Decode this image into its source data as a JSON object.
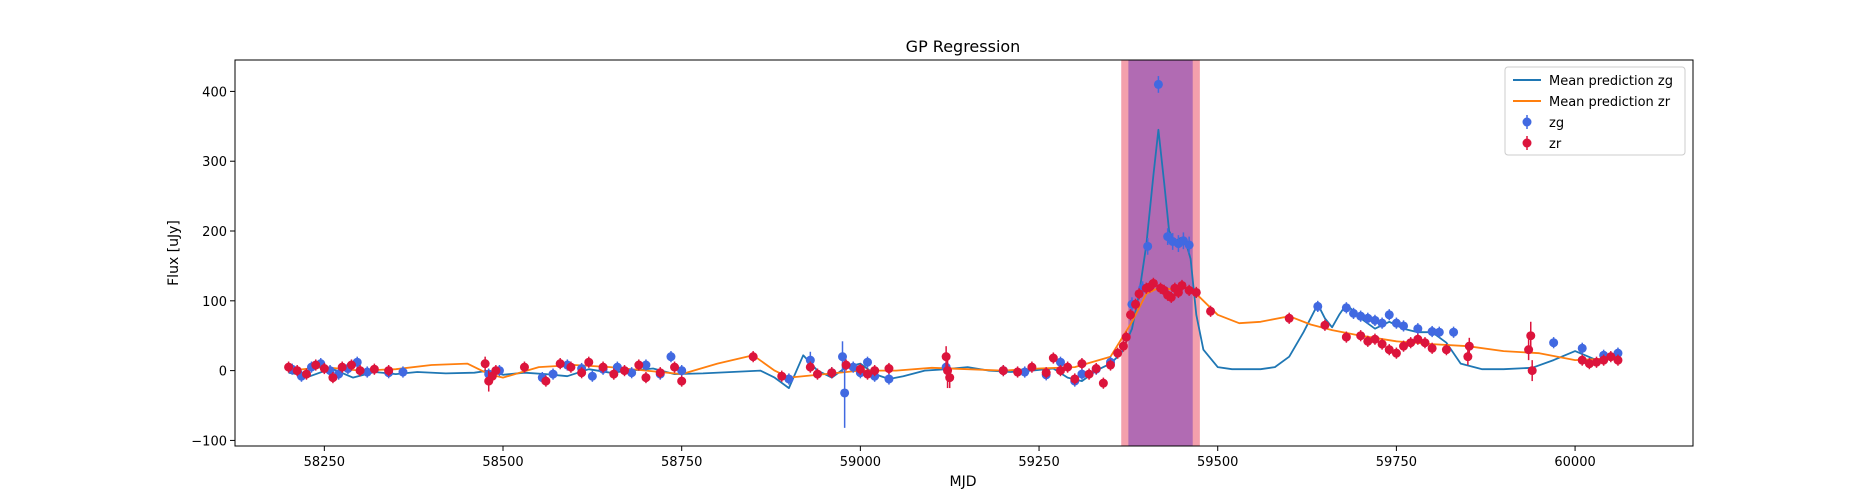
{
  "chart_data": {
    "type": "line",
    "title": "GP Regression",
    "xlabel": "MJD",
    "ylabel": "Flux [uJy]",
    "xlim": [
      58125,
      60165
    ],
    "ylim": [
      -108,
      445
    ],
    "xticks": [
      58250,
      58500,
      58750,
      59000,
      59250,
      59500,
      59750,
      60000
    ],
    "yticks": [
      -100,
      0,
      100,
      200,
      300,
      400
    ],
    "legend_position": "top-right",
    "shaded_regions": [
      {
        "x0": 59365,
        "x1": 59475,
        "color": "#f08090",
        "opacity": 0.75
      },
      {
        "x0": 59375,
        "x1": 59465,
        "color": "#9b59b6",
        "opacity": 0.75
      }
    ],
    "series": [
      {
        "name": "Mean prediction zg",
        "kind": "line",
        "color": "#1f77b4",
        "x": [
          58200,
          58230,
          58260,
          58290,
          58320,
          58350,
          58380,
          58420,
          58460,
          58480,
          58500,
          58530,
          58560,
          58590,
          58620,
          58650,
          58680,
          58710,
          58740,
          58780,
          58820,
          58860,
          58880,
          58900,
          58920,
          58940,
          58960,
          58980,
          59000,
          59020,
          59040,
          59060,
          59090,
          59120,
          59150,
          59180,
          59210,
          59240,
          59270,
          59290,
          59310,
          59330,
          59350,
          59365,
          59380,
          59390,
          59400,
          59410,
          59417,
          59425,
          59432,
          59440,
          59448,
          59455,
          59462,
          59470,
          59480,
          59500,
          59520,
          59540,
          59560,
          59580,
          59600,
          59620,
          59640,
          59650,
          59660,
          59670,
          59680,
          59700,
          59720,
          59740,
          59760,
          59780,
          59800,
          59820,
          59840,
          59870,
          59900,
          59940,
          59970,
          60000,
          60030,
          60060
        ],
        "y": [
          -3,
          -8,
          3,
          -10,
          -2,
          -5,
          -2,
          -4,
          -3,
          0,
          -6,
          -3,
          -5,
          -8,
          2,
          -3,
          0,
          3,
          -5,
          -4,
          -2,
          0,
          -10,
          -25,
          22,
          0,
          -10,
          5,
          10,
          -5,
          -12,
          -8,
          0,
          2,
          5,
          0,
          -2,
          0,
          3,
          -10,
          -15,
          0,
          10,
          25,
          60,
          110,
          180,
          280,
          345,
          270,
          200,
          185,
          190,
          185,
          160,
          80,
          30,
          5,
          2,
          2,
          2,
          5,
          20,
          55,
          95,
          75,
          62,
          80,
          95,
          75,
          60,
          70,
          60,
          55,
          55,
          40,
          10,
          2,
          2,
          4,
          15,
          28,
          15,
          22
        ]
      },
      {
        "name": "Mean prediction zr",
        "kind": "line",
        "color": "#ff7f0e",
        "x": [
          58200,
          58250,
          58300,
          58350,
          58400,
          58450,
          58480,
          58500,
          58550,
          58600,
          58650,
          58700,
          58750,
          58800,
          58850,
          58880,
          58900,
          58950,
          59000,
          59050,
          59100,
          59150,
          59200,
          59250,
          59300,
          59350,
          59380,
          59400,
          59420,
          59440,
          59460,
          59480,
          59500,
          59530,
          59560,
          59600,
          59630,
          59660,
          59700,
          59750,
          59800,
          59850,
          59900,
          59950,
          60000,
          60060
        ],
        "y": [
          0,
          5,
          0,
          2,
          8,
          10,
          -5,
          -10,
          5,
          8,
          5,
          0,
          -5,
          10,
          22,
          0,
          -10,
          -5,
          0,
          0,
          4,
          2,
          0,
          3,
          5,
          20,
          70,
          110,
          120,
          115,
          120,
          100,
          80,
          68,
          70,
          78,
          66,
          58,
          50,
          42,
          38,
          35,
          28,
          25,
          15,
          18
        ]
      },
      {
        "name": "zg",
        "kind": "points",
        "color": "#4169e1",
        "x": [
          58205,
          58218,
          58232,
          58245,
          58258,
          58270,
          58283,
          58296,
          58310,
          58340,
          58360,
          58480,
          58495,
          58555,
          58570,
          58590,
          58610,
          58625,
          58640,
          58660,
          58680,
          58700,
          58720,
          58735,
          58750,
          58900,
          58930,
          58960,
          58975,
          58978,
          58990,
          59000,
          59010,
          59020,
          59040,
          59120,
          59200,
          59230,
          59260,
          59280,
          59300,
          59310,
          59330,
          59350,
          59380,
          59395,
          59402,
          59417,
          59430,
          59437,
          59445,
          59452,
          59460,
          59640,
          59680,
          59690,
          59700,
          59710,
          59720,
          59730,
          59740,
          59750,
          59760,
          59780,
          59800,
          59810,
          59830,
          59970,
          60010,
          60040,
          60060
        ],
        "y": [
          2,
          -8,
          5,
          10,
          0,
          -5,
          3,
          12,
          -2,
          -3,
          -2,
          -5,
          0,
          -10,
          -5,
          8,
          3,
          -8,
          2,
          5,
          -3,
          8,
          -5,
          20,
          0,
          -12,
          15,
          -3,
          20,
          -32,
          5,
          -3,
          12,
          -8,
          -12,
          5,
          0,
          -2,
          -6,
          12,
          -15,
          -5,
          2,
          12,
          95,
          118,
          178,
          410,
          192,
          185,
          182,
          186,
          180,
          92,
          90,
          82,
          78,
          75,
          72,
          68,
          80,
          68,
          64,
          60,
          56,
          55,
          55,
          40,
          32,
          22,
          25
        ],
        "yerr": [
          8,
          8,
          8,
          8,
          8,
          8,
          8,
          8,
          8,
          8,
          8,
          8,
          8,
          8,
          8,
          8,
          8,
          8,
          8,
          8,
          8,
          8,
          8,
          8,
          8,
          8,
          12,
          8,
          22,
          50,
          8,
          8,
          8,
          8,
          8,
          8,
          8,
          8,
          8,
          8,
          8,
          8,
          8,
          8,
          10,
          10,
          12,
          12,
          12,
          12,
          12,
          12,
          12,
          8,
          8,
          8,
          8,
          8,
          8,
          8,
          8,
          8,
          8,
          8,
          8,
          8,
          8,
          8,
          8,
          8,
          8
        ]
      },
      {
        "name": "zr",
        "kind": "points",
        "color": "#dc143c",
        "x": [
          58200,
          58212,
          58225,
          58238,
          58250,
          58262,
          58275,
          58288,
          58300,
          58320,
          58340,
          58475,
          58480,
          58485,
          58490,
          58530,
          58560,
          58580,
          58595,
          58610,
          58620,
          58640,
          58655,
          58670,
          58690,
          58700,
          58720,
          58740,
          58750,
          58850,
          58890,
          58930,
          58940,
          58960,
          58980,
          59000,
          59010,
          59020,
          59040,
          59120,
          59122,
          59125,
          59200,
          59220,
          59240,
          59260,
          59270,
          59280,
          59290,
          59300,
          59310,
          59320,
          59330,
          59340,
          59350,
          59360,
          59368,
          59372,
          59378,
          59385,
          59390,
          59400,
          59405,
          59410,
          59420,
          59425,
          59430,
          59435,
          59440,
          59445,
          59450,
          59460,
          59470,
          59490,
          59600,
          59650,
          59680,
          59700,
          59710,
          59720,
          59730,
          59740,
          59750,
          59760,
          59770,
          59780,
          59790,
          59800,
          59820,
          59850,
          59852,
          59935,
          59938,
          59940,
          60010,
          60020,
          60030,
          60040,
          60050,
          60060
        ],
        "y": [
          5,
          0,
          -5,
          8,
          3,
          -10,
          5,
          8,
          0,
          2,
          0,
          10,
          -15,
          -8,
          0,
          5,
          -15,
          10,
          5,
          -3,
          12,
          5,
          -5,
          0,
          8,
          -10,
          -3,
          5,
          -15,
          20,
          -8,
          5,
          -5,
          -3,
          8,
          2,
          -5,
          0,
          3,
          20,
          0,
          -10,
          0,
          -2,
          5,
          -3,
          18,
          0,
          5,
          -12,
          10,
          -5,
          3,
          -18,
          8,
          25,
          35,
          48,
          80,
          95,
          110,
          118,
          120,
          125,
          118,
          115,
          108,
          105,
          118,
          112,
          122,
          115,
          112,
          85,
          75,
          65,
          48,
          50,
          42,
          45,
          38,
          30,
          25,
          35,
          40,
          45,
          40,
          32,
          30,
          20,
          35,
          30,
          50,
          0,
          15,
          10,
          12,
          15,
          20,
          15
        ],
        "yerr": [
          8,
          8,
          8,
          8,
          8,
          8,
          8,
          8,
          8,
          8,
          8,
          10,
          15,
          8,
          8,
          8,
          8,
          8,
          8,
          8,
          8,
          8,
          8,
          8,
          8,
          8,
          8,
          8,
          8,
          8,
          8,
          8,
          8,
          8,
          8,
          8,
          8,
          8,
          8,
          15,
          25,
          15,
          8,
          8,
          8,
          8,
          8,
          8,
          8,
          8,
          8,
          8,
          8,
          8,
          8,
          8,
          8,
          8,
          8,
          8,
          8,
          8,
          8,
          8,
          8,
          8,
          8,
          8,
          8,
          8,
          8,
          8,
          8,
          8,
          8,
          8,
          8,
          8,
          8,
          8,
          8,
          8,
          8,
          8,
          8,
          8,
          8,
          8,
          8,
          12,
          12,
          15,
          20,
          15,
          8,
          8,
          8,
          8,
          8,
          8
        ]
      }
    ]
  }
}
